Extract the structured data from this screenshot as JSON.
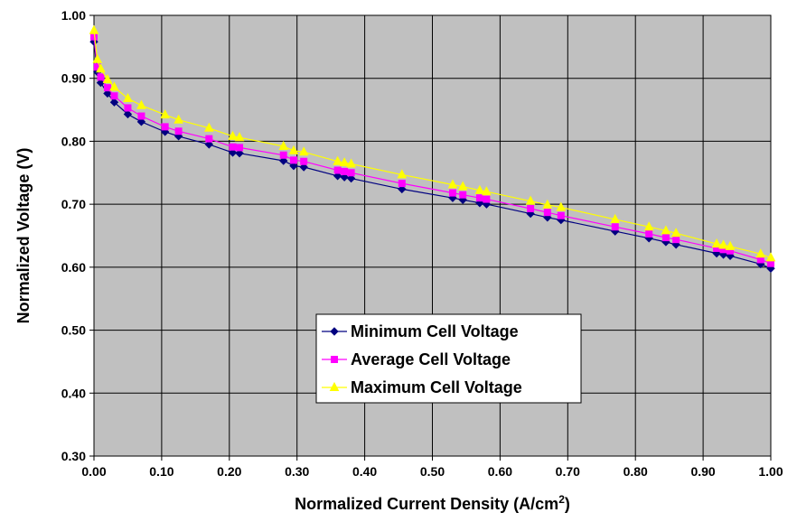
{
  "chart_data": {
    "type": "line",
    "title": "",
    "xlabel": "Normalized Current Density (A/cm",
    "xlabel_sup": "2",
    "xlabel_end": ")",
    "ylabel": "Normalized Voltage (V)",
    "xlim": [
      0,
      1
    ],
    "ylim": [
      0.3,
      1.0
    ],
    "x_ticks": [
      "0.00",
      "0.10",
      "0.20",
      "0.30",
      "0.40",
      "0.50",
      "0.60",
      "0.70",
      "0.80",
      "0.90",
      "1.00"
    ],
    "y_ticks": [
      "0.30",
      "0.40",
      "0.50",
      "0.60",
      "0.70",
      "0.80",
      "0.90",
      "1.00"
    ],
    "grid": true,
    "legend_position": "center-bottom",
    "plot_background": "#c0c0c0",
    "x": [
      0.0,
      0.005,
      0.01,
      0.02,
      0.03,
      0.05,
      0.07,
      0.105,
      0.125,
      0.17,
      0.205,
      0.215,
      0.28,
      0.295,
      0.31,
      0.36,
      0.37,
      0.38,
      0.455,
      0.53,
      0.545,
      0.57,
      0.58,
      0.645,
      0.67,
      0.69,
      0.77,
      0.82,
      0.845,
      0.86,
      0.92,
      0.93,
      0.94,
      0.985,
      1.0
    ],
    "series": [
      {
        "name": "Minimum Cell Voltage",
        "color": "#000080",
        "marker": "diamond",
        "values": [
          0.958,
          0.91,
          0.893,
          0.876,
          0.862,
          0.843,
          0.831,
          0.815,
          0.808,
          0.795,
          0.782,
          0.781,
          0.769,
          0.761,
          0.759,
          0.745,
          0.743,
          0.741,
          0.724,
          0.71,
          0.707,
          0.702,
          0.7,
          0.685,
          0.679,
          0.675,
          0.657,
          0.646,
          0.64,
          0.636,
          0.622,
          0.62,
          0.618,
          0.605,
          0.598
        ]
      },
      {
        "name": "Average Cell Voltage",
        "color": "#ff00ff",
        "marker": "square",
        "values": [
          0.966,
          0.918,
          0.902,
          0.885,
          0.872,
          0.853,
          0.84,
          0.823,
          0.816,
          0.804,
          0.791,
          0.79,
          0.778,
          0.77,
          0.768,
          0.754,
          0.752,
          0.75,
          0.733,
          0.718,
          0.715,
          0.71,
          0.708,
          0.693,
          0.687,
          0.682,
          0.664,
          0.653,
          0.647,
          0.644,
          0.63,
          0.628,
          0.626,
          0.612,
          0.606
        ]
      },
      {
        "name": "Maximum Cell Voltage",
        "color": "#ffff00",
        "marker": "triangle",
        "values": [
          0.976,
          0.93,
          0.915,
          0.898,
          0.886,
          0.868,
          0.857,
          0.842,
          0.834,
          0.821,
          0.808,
          0.806,
          0.792,
          0.785,
          0.783,
          0.768,
          0.766,
          0.764,
          0.747,
          0.731,
          0.728,
          0.722,
          0.72,
          0.705,
          0.699,
          0.695,
          0.676,
          0.664,
          0.658,
          0.654,
          0.637,
          0.635,
          0.633,
          0.621,
          0.615
        ]
      }
    ]
  }
}
